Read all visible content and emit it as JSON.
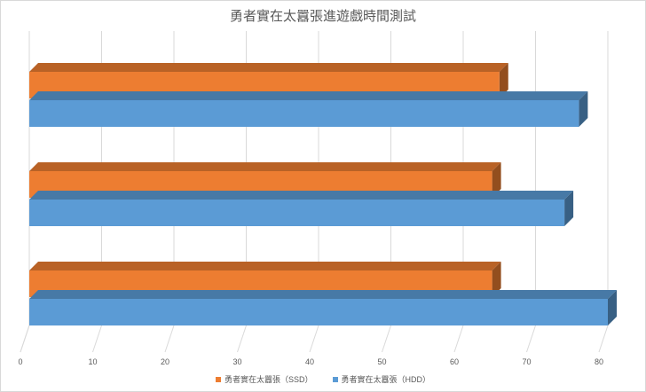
{
  "chart_data": {
    "type": "bar",
    "orientation": "horizontal",
    "title": "勇者實在太囂張進遊戲時間測試",
    "categories": [
      "",
      "",
      ""
    ],
    "series": [
      {
        "name": "勇者實在太囂張（SSD）",
        "color": "#ed7d31",
        "values": [
          65,
          64,
          64
        ]
      },
      {
        "name": "勇者實在太囂張（HDD）",
        "color": "#5b9bd5",
        "values": [
          76,
          74,
          80
        ]
      }
    ],
    "xlim": [
      0,
      80
    ],
    "xticks": [
      0,
      10,
      20,
      30,
      40,
      50,
      60,
      70,
      80
    ],
    "grid": true,
    "legend_position": "bottom",
    "style": "3d-bar"
  }
}
